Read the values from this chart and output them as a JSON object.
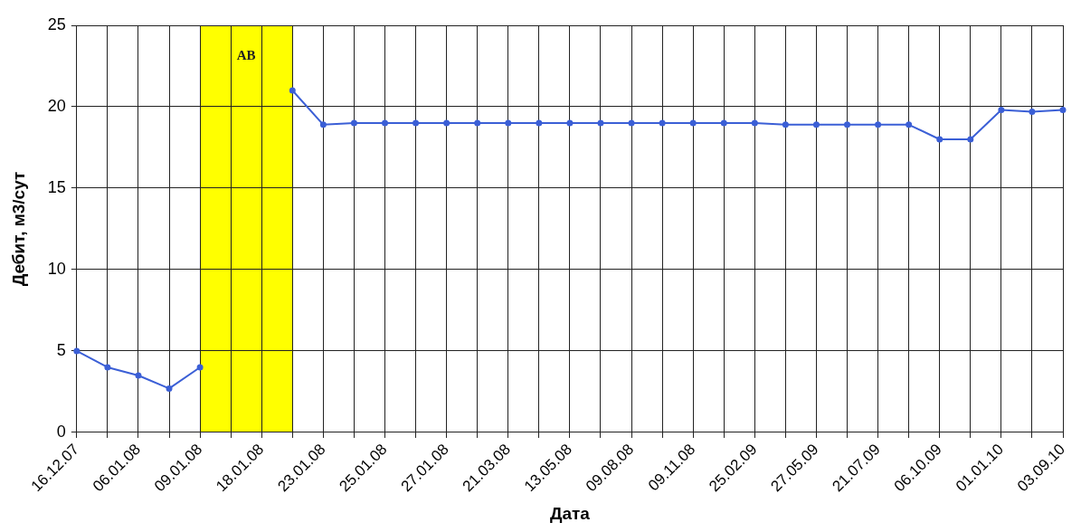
{
  "chart_data": {
    "type": "line",
    "xlabel": "Дата",
    "ylabel": "Дебит, м3/сут",
    "categories": [
      "16.12.07",
      null,
      "06.01.08",
      null,
      "09.01.08",
      null,
      "18.01.08",
      null,
      "23.01.08",
      null,
      "25.01.08",
      null,
      "27.01.08",
      null,
      "21.03.08",
      null,
      "13.05.08",
      null,
      "09.08.08",
      null,
      "09.11.08",
      null,
      "25.02.09",
      null,
      "27.05.09",
      null,
      "21.07.09",
      null,
      "06.10.09",
      null,
      "01.01.10",
      null,
      "03.09.10"
    ],
    "series": [
      {
        "color": "#3b5fd6",
        "values": [
          5,
          4,
          3.5,
          2.7,
          4,
          null,
          null,
          21,
          18.9,
          19,
          19,
          19,
          19,
          19,
          19,
          19,
          19,
          19,
          19,
          19,
          19,
          19,
          19,
          18.9,
          18.9,
          18.9,
          18.9,
          18.9,
          18,
          18,
          19.8,
          19.7,
          19.8
        ]
      }
    ],
    "ylim": [
      0,
      25
    ],
    "yticks": [
      0,
      5,
      10,
      15,
      20,
      25
    ],
    "annotations": [
      "АВ"
    ],
    "grid": true,
    "legend": false,
    "marker": "circle",
    "line_style": "solid"
  }
}
